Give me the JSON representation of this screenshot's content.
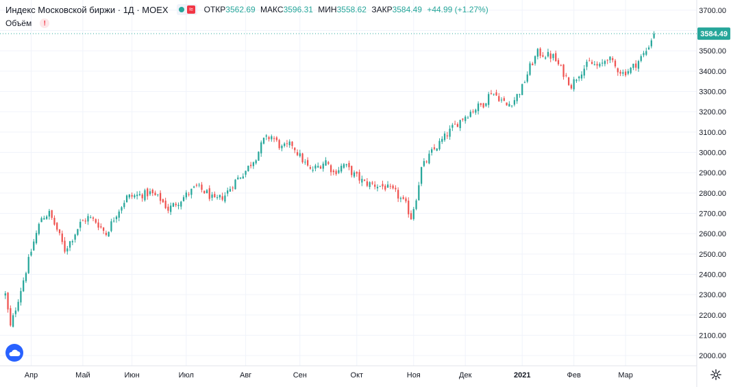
{
  "header": {
    "title": "Индекс Московской биржи · 1Д · MOEX",
    "approx_label": "≈",
    "open_label": "ОТКР",
    "open": "3562.69",
    "high_label": "МАКС",
    "high": "3596.31",
    "low_label": "МИН",
    "low": "3558.62",
    "close_label": "ЗАКР",
    "close": "3584.49",
    "change": "+44.99 (+1.27%)"
  },
  "volume": {
    "label": "Объём",
    "warning": "!"
  },
  "colors": {
    "up": "#26a69a",
    "down": "#ef5350",
    "grid": "#f0f3fa",
    "last_price_bg": "#26a69a"
  },
  "chart_data": {
    "type": "candlestick",
    "title": "Индекс Московской биржи · 1Д · MOEX",
    "ylim": [
      1950,
      3750
    ],
    "y_ticks": [
      2000,
      2100,
      2200,
      2300,
      2400,
      2500,
      2600,
      2700,
      2800,
      2900,
      3000,
      3100,
      3200,
      3300,
      3400,
      3500,
      3600,
      3700
    ],
    "y_tick_labels": [
      "2000.00",
      "2100.00",
      "2200.00",
      "2300.00",
      "2400.00",
      "2500.00",
      "2600.00",
      "2700.00",
      "2800.00",
      "2900.00",
      "3000.00",
      "3100.00",
      "3200.00",
      "3300.00",
      "3400.00",
      "3500.00",
      "3600.00",
      "3700.00"
    ],
    "x_labels": [
      {
        "label": "Апр",
        "day": 10
      },
      {
        "label": "Май",
        "day": 30
      },
      {
        "label": "Июн",
        "day": 49
      },
      {
        "label": "Июл",
        "day": 70
      },
      {
        "label": "Авг",
        "day": 93
      },
      {
        "label": "Сен",
        "day": 114
      },
      {
        "label": "Окт",
        "day": 136
      },
      {
        "label": "Ноя",
        "day": 158
      },
      {
        "label": "Дек",
        "day": 178
      },
      {
        "label": "2021",
        "day": 200
      },
      {
        "label": "Фев",
        "day": 220
      },
      {
        "label": "Мар",
        "day": 240
      }
    ],
    "day_range": [
      -1,
      258
    ],
    "last_price": "3584.49",
    "last_value": 3584.49,
    "path_points": [
      [
        0,
        2300
      ],
      [
        2,
        2140
      ],
      [
        5,
        2280
      ],
      [
        8,
        2420
      ],
      [
        11,
        2560
      ],
      [
        14,
        2680
      ],
      [
        17,
        2700
      ],
      [
        20,
        2620
      ],
      [
        23,
        2520
      ],
      [
        26,
        2580
      ],
      [
        29,
        2650
      ],
      [
        32,
        2680
      ],
      [
        35,
        2660
      ],
      [
        39,
        2600
      ],
      [
        43,
        2700
      ],
      [
        47,
        2780
      ],
      [
        52,
        2790
      ],
      [
        56,
        2800
      ],
      [
        60,
        2770
      ],
      [
        63,
        2720
      ],
      [
        67,
        2760
      ],
      [
        71,
        2800
      ],
      [
        74,
        2830
      ],
      [
        78,
        2800
      ],
      [
        81,
        2760
      ],
      [
        85,
        2790
      ],
      [
        89,
        2860
      ],
      [
        93,
        2910
      ],
      [
        97,
        2980
      ],
      [
        100,
        3060
      ],
      [
        103,
        3080
      ],
      [
        107,
        3020
      ],
      [
        111,
        3040
      ],
      [
        114,
        2980
      ],
      [
        118,
        2910
      ],
      [
        121,
        2930
      ],
      [
        124,
        2960
      ],
      [
        127,
        2900
      ],
      [
        131,
        2940
      ],
      [
        135,
        2890
      ],
      [
        139,
        2850
      ],
      [
        143,
        2840
      ],
      [
        147,
        2830
      ],
      [
        151,
        2800
      ],
      [
        155,
        2740
      ],
      [
        157,
        2680
      ],
      [
        159,
        2780
      ],
      [
        161,
        2920
      ],
      [
        165,
        3000
      ],
      [
        169,
        3060
      ],
      [
        173,
        3120
      ],
      [
        177,
        3170
      ],
      [
        181,
        3210
      ],
      [
        185,
        3240
      ],
      [
        188,
        3300
      ],
      [
        191,
        3270
      ],
      [
        194,
        3230
      ],
      [
        197,
        3260
      ],
      [
        200,
        3320
      ],
      [
        203,
        3420
      ],
      [
        206,
        3490
      ],
      [
        209,
        3480
      ],
      [
        212,
        3470
      ],
      [
        215,
        3410
      ],
      [
        219,
        3330
      ],
      [
        222,
        3390
      ],
      [
        226,
        3440
      ],
      [
        230,
        3420
      ],
      [
        233,
        3470
      ],
      [
        236,
        3420
      ],
      [
        239,
        3390
      ],
      [
        242,
        3410
      ],
      [
        245,
        3450
      ],
      [
        248,
        3500
      ],
      [
        251,
        3584
      ]
    ]
  }
}
